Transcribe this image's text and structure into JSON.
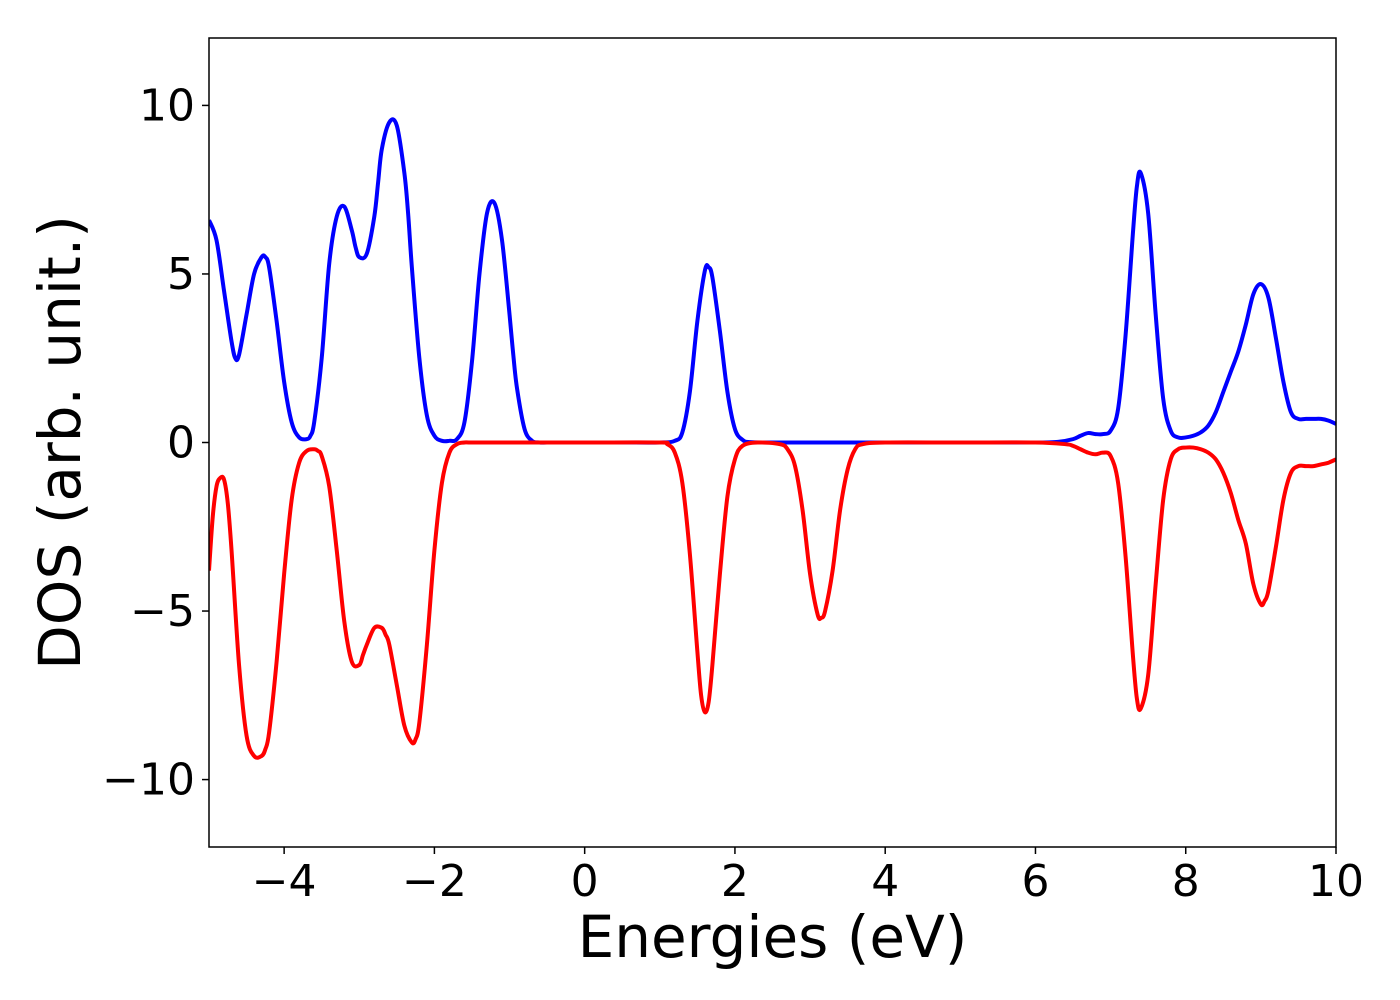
{
  "chart_data": {
    "type": "line",
    "title": "",
    "xlabel": "Energies (eV)",
    "ylabel": "DOS (arb. unit.)",
    "xlim": [
      -5,
      10
    ],
    "ylim": [
      -12,
      12
    ],
    "grid": false,
    "legend": "none",
    "xticks": [
      -4,
      -2,
      0,
      2,
      4,
      6,
      8,
      10
    ],
    "xtick_labels": [
      "−4",
      "−2",
      "0",
      "2",
      "4",
      "6",
      "8",
      "10"
    ],
    "yticks": [
      10,
      5,
      0,
      -5,
      -10
    ],
    "ytick_labels": [
      "10",
      "5",
      "0",
      "−5",
      "−10"
    ],
    "series": [
      {
        "color": "#0000ff",
        "x": [
          -5.0,
          -4.9,
          -4.8,
          -4.7,
          -4.65,
          -4.6,
          -4.5,
          -4.4,
          -4.3,
          -4.25,
          -4.2,
          -4.1,
          -4.0,
          -3.9,
          -3.8,
          -3.7,
          -3.65,
          -3.6,
          -3.5,
          -3.4,
          -3.3,
          -3.2,
          -3.1,
          -3.05,
          -3.0,
          -2.9,
          -2.8,
          -2.75,
          -2.7,
          -2.6,
          -2.5,
          -2.4,
          -2.35,
          -2.3,
          -2.2,
          -2.1,
          -2.0,
          -1.9,
          -1.8,
          -1.7,
          -1.6,
          -1.5,
          -1.4,
          -1.3,
          -1.2,
          -1.1,
          -1.0,
          -0.95,
          -0.9,
          -0.8,
          -0.7,
          -0.6,
          -0.5,
          -0.3,
          0.0,
          0.5,
          1.0,
          1.2,
          1.3,
          1.4,
          1.5,
          1.6,
          1.65,
          1.7,
          1.8,
          1.9,
          2.0,
          2.1,
          2.2,
          2.5,
          3.0,
          4.0,
          5.0,
          6.0,
          6.3,
          6.5,
          6.6,
          6.7,
          6.8,
          6.9,
          7.0,
          7.1,
          7.2,
          7.3,
          7.35,
          7.4,
          7.5,
          7.6,
          7.7,
          7.8,
          7.9,
          8.0,
          8.1,
          8.2,
          8.3,
          8.4,
          8.5,
          8.6,
          8.7,
          8.8,
          8.9,
          9.0,
          9.1,
          9.2,
          9.3,
          9.4,
          9.5,
          9.6,
          9.7,
          9.8,
          9.9,
          10.0
        ],
        "y": [
          6.6,
          6.0,
          4.5,
          3.0,
          2.5,
          2.6,
          3.8,
          5.0,
          5.5,
          5.5,
          5.2,
          3.6,
          1.8,
          0.6,
          0.15,
          0.1,
          0.2,
          0.6,
          2.5,
          5.3,
          6.7,
          7.0,
          6.3,
          5.8,
          5.5,
          5.6,
          6.7,
          7.7,
          8.7,
          9.5,
          9.4,
          8.0,
          6.8,
          5.2,
          2.5,
          0.8,
          0.2,
          0.05,
          0.05,
          0.1,
          0.6,
          2.4,
          5.0,
          6.8,
          7.1,
          6.0,
          3.8,
          2.6,
          1.6,
          0.4,
          0.05,
          0.0,
          0.0,
          0.0,
          0.0,
          0.0,
          0.0,
          0.05,
          0.3,
          1.5,
          3.6,
          5.1,
          5.2,
          4.9,
          3.3,
          1.5,
          0.4,
          0.08,
          0.01,
          0.0,
          0.0,
          0.0,
          0.0,
          0.0,
          0.02,
          0.1,
          0.2,
          0.28,
          0.25,
          0.25,
          0.35,
          1.0,
          3.2,
          6.3,
          7.6,
          8.0,
          6.8,
          3.8,
          1.3,
          0.35,
          0.15,
          0.15,
          0.2,
          0.3,
          0.5,
          0.9,
          1.5,
          2.1,
          2.7,
          3.5,
          4.4,
          4.7,
          4.3,
          3.1,
          1.8,
          0.9,
          0.7,
          0.7,
          0.7,
          0.7,
          0.65,
          0.55
        ]
      },
      {
        "color": "#ff0000",
        "x": [
          -5.0,
          -4.95,
          -4.9,
          -4.85,
          -4.8,
          -4.75,
          -4.7,
          -4.6,
          -4.5,
          -4.4,
          -4.3,
          -4.25,
          -4.2,
          -4.1,
          -4.0,
          -3.9,
          -3.8,
          -3.7,
          -3.6,
          -3.55,
          -3.5,
          -3.4,
          -3.3,
          -3.2,
          -3.1,
          -3.0,
          -2.95,
          -2.9,
          -2.8,
          -2.7,
          -2.65,
          -2.6,
          -2.5,
          -2.4,
          -2.3,
          -2.25,
          -2.2,
          -2.1,
          -2.0,
          -1.9,
          -1.8,
          -1.7,
          -1.6,
          -1.5,
          -1.0,
          0.0,
          1.0,
          1.1,
          1.2,
          1.3,
          1.4,
          1.5,
          1.55,
          1.6,
          1.65,
          1.7,
          1.8,
          1.9,
          2.0,
          2.1,
          2.3,
          2.6,
          2.7,
          2.8,
          2.9,
          3.0,
          3.1,
          3.15,
          3.2,
          3.3,
          3.4,
          3.5,
          3.6,
          3.7,
          4.0,
          5.0,
          6.0,
          6.4,
          6.5,
          6.6,
          6.7,
          6.8,
          6.9,
          7.0,
          7.1,
          7.2,
          7.3,
          7.35,
          7.4,
          7.5,
          7.6,
          7.7,
          7.8,
          7.9,
          8.0,
          8.1,
          8.2,
          8.3,
          8.4,
          8.5,
          8.6,
          8.7,
          8.8,
          8.9,
          9.0,
          9.05,
          9.1,
          9.2,
          9.3,
          9.4,
          9.5,
          9.6,
          9.7,
          9.8,
          9.9,
          10.0
        ],
        "y": [
          -3.8,
          -2.2,
          -1.3,
          -1.05,
          -1.1,
          -1.8,
          -3.2,
          -6.6,
          -8.7,
          -9.3,
          -9.3,
          -9.1,
          -8.6,
          -6.5,
          -3.9,
          -1.7,
          -0.6,
          -0.25,
          -0.2,
          -0.25,
          -0.4,
          -1.3,
          -3.2,
          -5.3,
          -6.5,
          -6.6,
          -6.3,
          -6.0,
          -5.5,
          -5.5,
          -5.7,
          -6.0,
          -7.2,
          -8.4,
          -8.9,
          -8.8,
          -8.3,
          -6.0,
          -3.2,
          -1.2,
          -0.3,
          -0.05,
          0.0,
          0.0,
          0.0,
          0.0,
          0.0,
          -0.05,
          -0.3,
          -1.2,
          -3.3,
          -6.2,
          -7.5,
          -8.0,
          -7.7,
          -6.6,
          -3.9,
          -1.6,
          -0.5,
          -0.1,
          -0.0,
          -0.05,
          -0.2,
          -0.7,
          -2.0,
          -3.9,
          -5.1,
          -5.2,
          -5.0,
          -3.8,
          -2.0,
          -0.8,
          -0.2,
          -0.05,
          0.0,
          0.0,
          0.0,
          -0.05,
          -0.1,
          -0.2,
          -0.3,
          -0.35,
          -0.3,
          -0.4,
          -1.2,
          -3.4,
          -6.4,
          -7.6,
          -7.9,
          -6.9,
          -4.2,
          -1.7,
          -0.5,
          -0.2,
          -0.15,
          -0.15,
          -0.2,
          -0.3,
          -0.5,
          -0.9,
          -1.5,
          -2.3,
          -3.0,
          -4.2,
          -4.8,
          -4.7,
          -4.4,
          -3.1,
          -1.7,
          -0.9,
          -0.7,
          -0.7,
          -0.7,
          -0.65,
          -0.6,
          -0.5
        ]
      }
    ]
  }
}
